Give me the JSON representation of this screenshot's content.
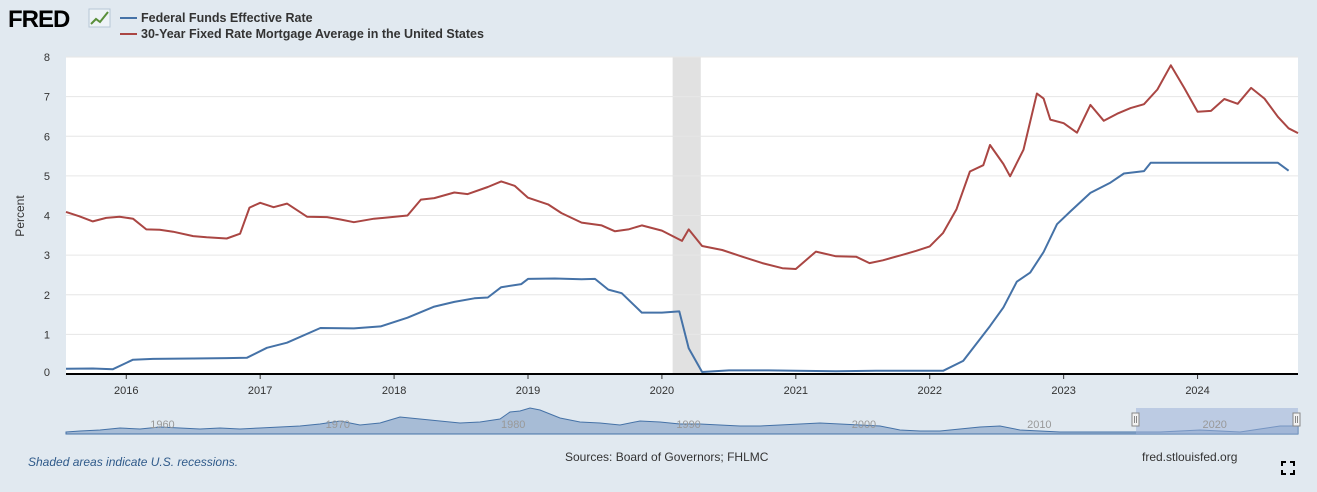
{
  "brand": {
    "logo_text": "FRED",
    "logo_icon": "chart-line-icon"
  },
  "footer": {
    "recession_note": "Shaded areas indicate U.S. recessions.",
    "sources": "Sources: Board of Governors; FHLMC",
    "site": "fred.stlouisfed.org",
    "expand_icon": "expand-icon"
  },
  "chart_data": {
    "type": "line",
    "ylabel": "Percent",
    "ylim": [
      0,
      8
    ],
    "xlim": [
      2015.55,
      2024.75
    ],
    "y_ticks": [
      "0",
      "1",
      "2",
      "3",
      "4",
      "5",
      "6",
      "7",
      "8"
    ],
    "x_ticks": [
      "2016",
      "2017",
      "2018",
      "2019",
      "2020",
      "2021",
      "2022",
      "2023",
      "2024"
    ],
    "grid": true,
    "legend_placement": "top-left",
    "recessions": [
      [
        2020.08,
        2020.29
      ]
    ],
    "series": [
      {
        "name": "Federal Funds Effective Rate",
        "color": "#4572a7",
        "points": [
          [
            2015.55,
            0.13
          ],
          [
            2015.75,
            0.14
          ],
          [
            2015.9,
            0.12
          ],
          [
            2016.05,
            0.36
          ],
          [
            2016.2,
            0.38
          ],
          [
            2016.5,
            0.39
          ],
          [
            2016.75,
            0.4
          ],
          [
            2016.9,
            0.41
          ],
          [
            2017.05,
            0.66
          ],
          [
            2017.2,
            0.79
          ],
          [
            2017.45,
            1.16
          ],
          [
            2017.7,
            1.15
          ],
          [
            2017.9,
            1.2
          ],
          [
            2018.1,
            1.42
          ],
          [
            2018.3,
            1.7
          ],
          [
            2018.45,
            1.82
          ],
          [
            2018.6,
            1.91
          ],
          [
            2018.7,
            1.93
          ],
          [
            2018.8,
            2.19
          ],
          [
            2018.95,
            2.27
          ],
          [
            2019.0,
            2.4
          ],
          [
            2019.2,
            2.41
          ],
          [
            2019.4,
            2.39
          ],
          [
            2019.5,
            2.4
          ],
          [
            2019.6,
            2.13
          ],
          [
            2019.7,
            2.04
          ],
          [
            2019.85,
            1.55
          ],
          [
            2020.0,
            1.55
          ],
          [
            2020.13,
            1.58
          ],
          [
            2020.2,
            0.65
          ],
          [
            2020.3,
            0.05
          ],
          [
            2020.5,
            0.09
          ],
          [
            2020.8,
            0.09
          ],
          [
            2021.0,
            0.08
          ],
          [
            2021.3,
            0.07
          ],
          [
            2021.6,
            0.08
          ],
          [
            2021.9,
            0.08
          ],
          [
            2022.1,
            0.08
          ],
          [
            2022.25,
            0.33
          ],
          [
            2022.45,
            1.21
          ],
          [
            2022.55,
            1.68
          ],
          [
            2022.65,
            2.33
          ],
          [
            2022.75,
            2.56
          ],
          [
            2022.85,
            3.08
          ],
          [
            2022.95,
            3.78
          ],
          [
            2023.05,
            4.1
          ],
          [
            2023.2,
            4.57
          ],
          [
            2023.35,
            4.83
          ],
          [
            2023.45,
            5.06
          ],
          [
            2023.6,
            5.12
          ],
          [
            2023.65,
            5.33
          ],
          [
            2023.9,
            5.33
          ],
          [
            2024.2,
            5.33
          ],
          [
            2024.6,
            5.33
          ],
          [
            2024.68,
            5.13
          ]
        ]
      },
      {
        "name": "30-Year Fixed Rate Mortgage Average in the United States",
        "color": "#aa4643",
        "points": [
          [
            2015.55,
            4.09
          ],
          [
            2015.65,
            3.98
          ],
          [
            2015.75,
            3.85
          ],
          [
            2015.85,
            3.94
          ],
          [
            2015.95,
            3.97
          ],
          [
            2016.05,
            3.92
          ],
          [
            2016.15,
            3.65
          ],
          [
            2016.25,
            3.64
          ],
          [
            2016.35,
            3.59
          ],
          [
            2016.5,
            3.48
          ],
          [
            2016.6,
            3.45
          ],
          [
            2016.75,
            3.42
          ],
          [
            2016.85,
            3.54
          ],
          [
            2016.92,
            4.2
          ],
          [
            2017.0,
            4.32
          ],
          [
            2017.1,
            4.21
          ],
          [
            2017.2,
            4.3
          ],
          [
            2017.35,
            3.97
          ],
          [
            2017.5,
            3.96
          ],
          [
            2017.6,
            3.9
          ],
          [
            2017.7,
            3.83
          ],
          [
            2017.85,
            3.92
          ],
          [
            2017.95,
            3.95
          ],
          [
            2018.1,
            4.0
          ],
          [
            2018.2,
            4.4
          ],
          [
            2018.3,
            4.44
          ],
          [
            2018.45,
            4.58
          ],
          [
            2018.55,
            4.54
          ],
          [
            2018.7,
            4.72
          ],
          [
            2018.8,
            4.86
          ],
          [
            2018.9,
            4.75
          ],
          [
            2019.0,
            4.45
          ],
          [
            2019.15,
            4.28
          ],
          [
            2019.25,
            4.06
          ],
          [
            2019.4,
            3.82
          ],
          [
            2019.55,
            3.75
          ],
          [
            2019.65,
            3.6
          ],
          [
            2019.75,
            3.65
          ],
          [
            2019.85,
            3.75
          ],
          [
            2020.0,
            3.62
          ],
          [
            2020.15,
            3.36
          ],
          [
            2020.2,
            3.65
          ],
          [
            2020.3,
            3.23
          ],
          [
            2020.45,
            3.13
          ],
          [
            2020.6,
            2.96
          ],
          [
            2020.75,
            2.8
          ],
          [
            2020.9,
            2.67
          ],
          [
            2021.0,
            2.65
          ],
          [
            2021.15,
            3.09
          ],
          [
            2021.3,
            2.97
          ],
          [
            2021.45,
            2.96
          ],
          [
            2021.55,
            2.8
          ],
          [
            2021.65,
            2.87
          ],
          [
            2021.8,
            3.01
          ],
          [
            2021.9,
            3.11
          ],
          [
            2022.0,
            3.22
          ],
          [
            2022.1,
            3.56
          ],
          [
            2022.2,
            4.16
          ],
          [
            2022.3,
            5.11
          ],
          [
            2022.4,
            5.27
          ],
          [
            2022.45,
            5.78
          ],
          [
            2022.55,
            5.3
          ],
          [
            2022.6,
            4.99
          ],
          [
            2022.7,
            5.66
          ],
          [
            2022.8,
            7.08
          ],
          [
            2022.85,
            6.95
          ],
          [
            2022.9,
            6.42
          ],
          [
            2023.0,
            6.33
          ],
          [
            2023.1,
            6.09
          ],
          [
            2023.2,
            6.79
          ],
          [
            2023.3,
            6.39
          ],
          [
            2023.4,
            6.57
          ],
          [
            2023.5,
            6.71
          ],
          [
            2023.6,
            6.81
          ],
          [
            2023.7,
            7.18
          ],
          [
            2023.8,
            7.79
          ],
          [
            2023.9,
            7.22
          ],
          [
            2024.0,
            6.62
          ],
          [
            2024.1,
            6.64
          ],
          [
            2024.2,
            6.94
          ],
          [
            2024.3,
            6.82
          ],
          [
            2024.4,
            7.22
          ],
          [
            2024.5,
            6.95
          ],
          [
            2024.6,
            6.49
          ],
          [
            2024.68,
            6.2
          ],
          [
            2024.75,
            6.08
          ]
        ]
      }
    ]
  },
  "navigator": {
    "ticks": [
      "1960",
      "1970",
      "1980",
      "1990",
      "2000",
      "2010",
      "2020"
    ]
  }
}
